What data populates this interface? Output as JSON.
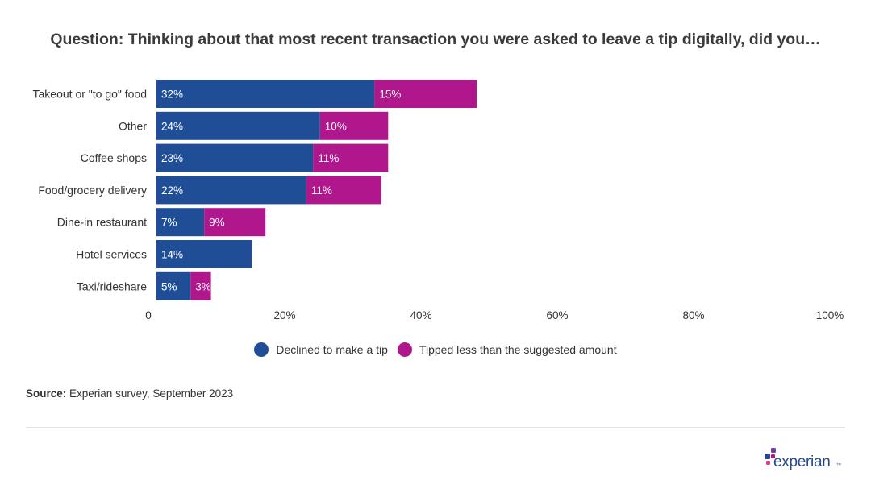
{
  "title": "Question: Thinking about that most recent transaction you were asked to leave a tip digitally, did you…",
  "source": {
    "label": "Source:",
    "text": "Experian survey, September 2023"
  },
  "logo": {
    "text": "experian",
    "tm": "™"
  },
  "colors": {
    "declined": "#1f4e96",
    "tipped_less": "#b0178c",
    "axis_text": "#333333"
  },
  "chart_data": {
    "type": "bar",
    "orientation": "horizontal",
    "stacked": true,
    "categories": [
      "Takeout or \"to go\" food",
      "Other",
      "Coffee shops",
      "Food/grocery delivery",
      "Dine-in restaurant",
      "Hotel services",
      "Taxi/rideshare"
    ],
    "series": [
      {
        "name": "Declined to make a tip",
        "values": [
          32,
          24,
          23,
          22,
          7,
          14,
          5
        ],
        "labels": [
          "32%",
          "24%",
          "23%",
          "22%",
          "7%",
          "14%",
          "5%"
        ]
      },
      {
        "name": "Tipped less than the suggested amount",
        "values": [
          15,
          10,
          11,
          11,
          9,
          0,
          3
        ],
        "labels": [
          "15%",
          "10%",
          "11%",
          "11%",
          "9%",
          "",
          "3%"
        ]
      }
    ],
    "xlim": [
      0,
      100
    ],
    "xticks": [
      0,
      20,
      40,
      60,
      80,
      100
    ],
    "xtick_labels": [
      "0",
      "20%",
      "40%",
      "60%",
      "80%",
      "100%"
    ],
    "grid": false,
    "legend_position": "bottom"
  }
}
